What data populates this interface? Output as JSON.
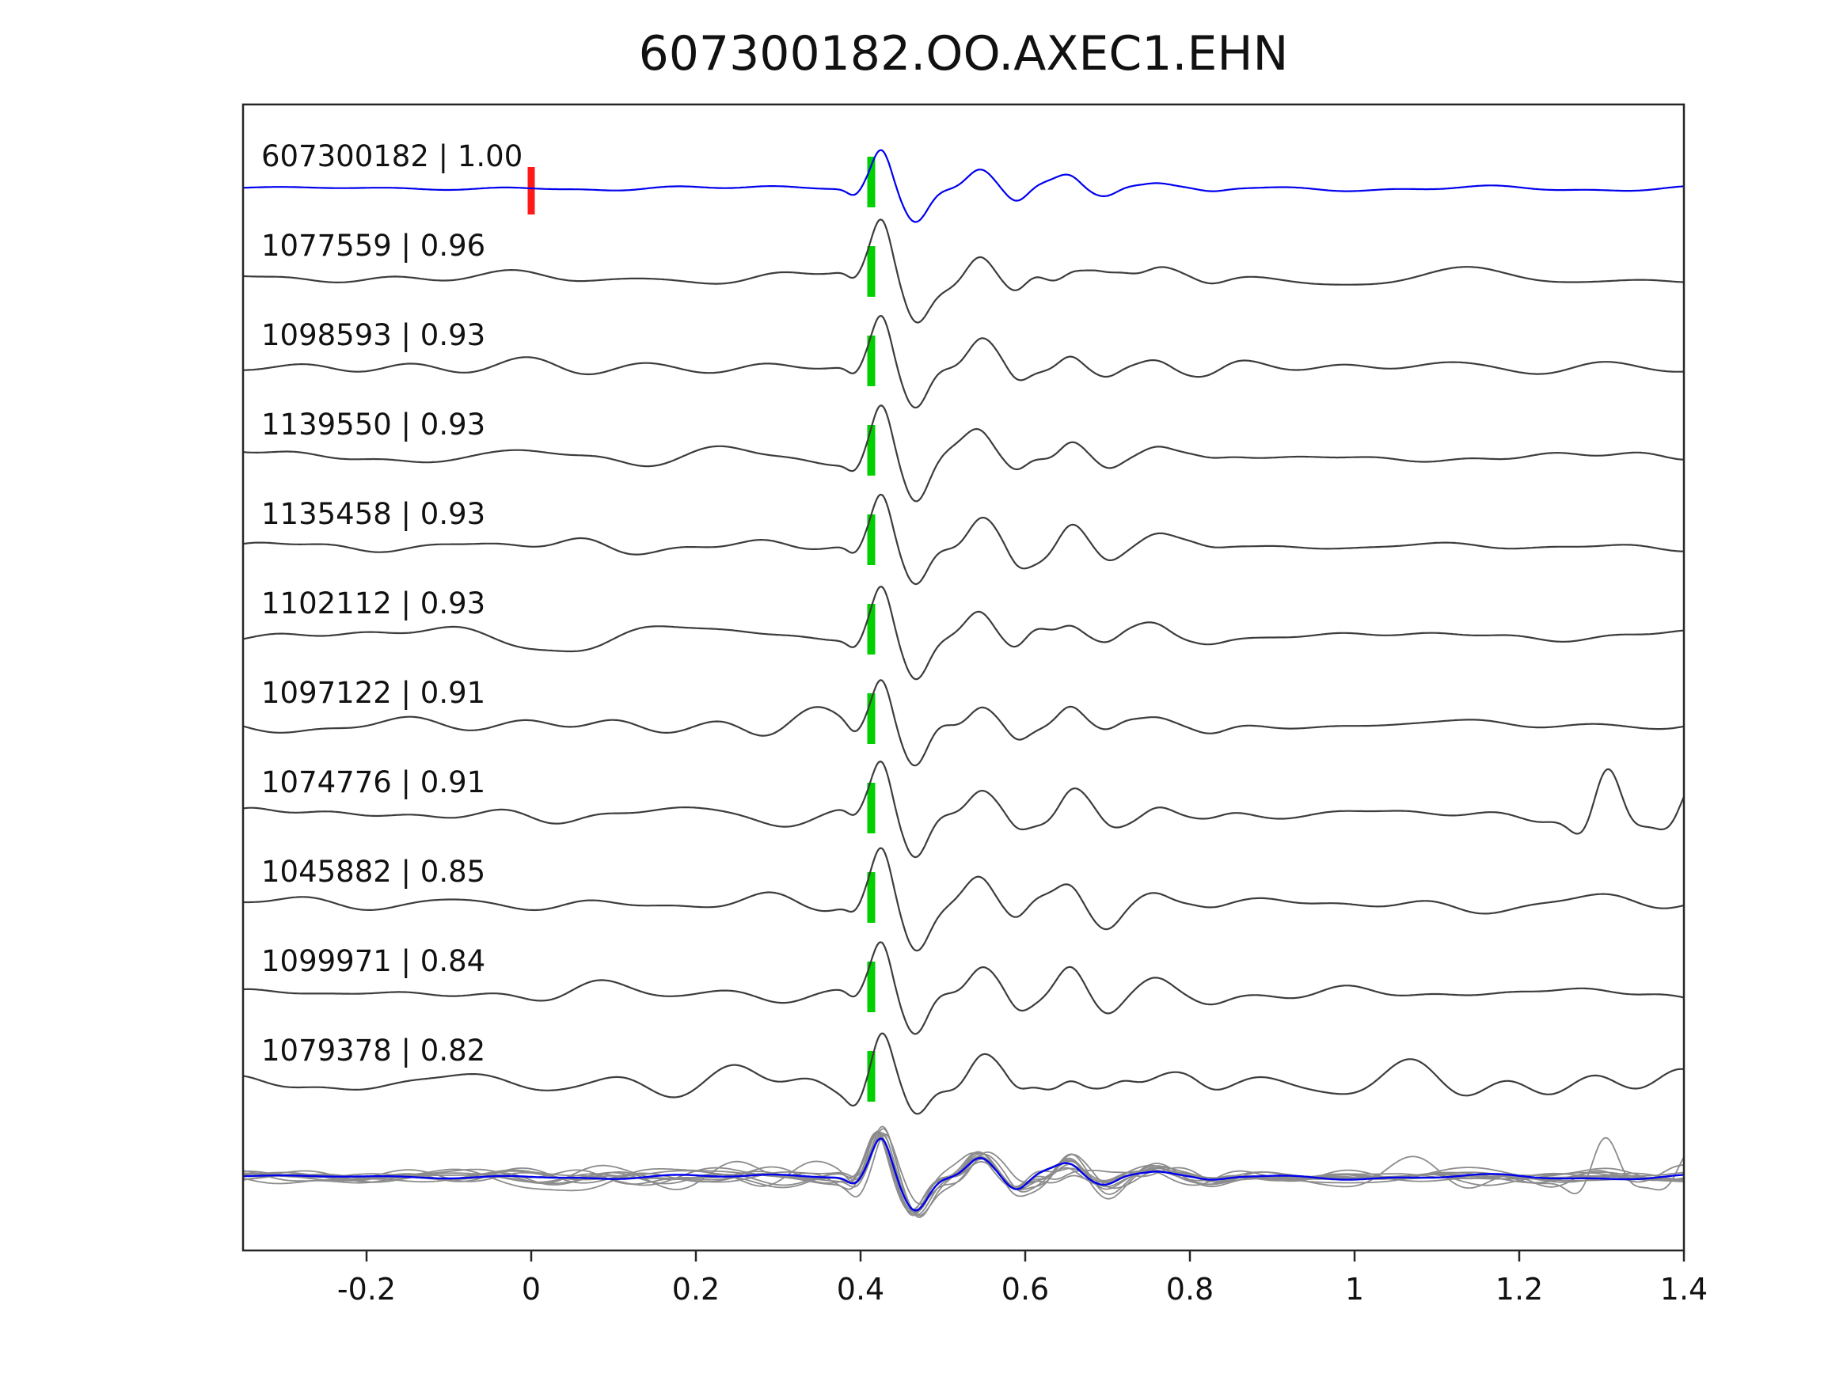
{
  "title": "607300182.OO.AXEC1.EHN",
  "chart_data": {
    "type": "line",
    "title": "607300182.OO.AXEC1.EHN",
    "xlabel": "",
    "ylabel": "",
    "xlim": [
      -0.35,
      1.4
    ],
    "x_tick_values": [
      -0.2,
      0,
      0.2,
      0.4,
      0.6,
      0.8,
      1,
      1.2,
      1.4
    ],
    "x_ticks": [
      "-0.2",
      "0",
      "0.2",
      "0.4",
      "0.6",
      "0.8",
      "1",
      "1.2",
      "1.4"
    ],
    "pick_time": 0.413,
    "template_pick_time": 0.0,
    "grid": false,
    "legend": false,
    "colors": {
      "template_trace": "#0000ee",
      "match_trace": "#3c3c3c",
      "stack_trace": "#8c8c8c",
      "pick_marker": "#00cf00",
      "template_pick_marker": "#ff1a1a",
      "axis": "#262626",
      "text": "#111111",
      "background": "#ffffff"
    },
    "traces": [
      {
        "id": "607300182",
        "cc": 1.0,
        "label": "607300182 | 1.00",
        "is_template": true
      },
      {
        "id": "1077559",
        "cc": 0.96,
        "label": "1077559 | 0.96"
      },
      {
        "id": "1098593",
        "cc": 0.93,
        "label": "1098593 | 0.93"
      },
      {
        "id": "1139550",
        "cc": 0.93,
        "label": "1139550 | 0.93"
      },
      {
        "id": "1135458",
        "cc": 0.93,
        "label": "1135458 | 0.93"
      },
      {
        "id": "1102112",
        "cc": 0.93,
        "label": "1102112 | 0.93"
      },
      {
        "id": "1097122",
        "cc": 0.91,
        "label": "1097122 | 0.91"
      },
      {
        "id": "1074776",
        "cc": 0.91,
        "label": "1074776 | 0.91",
        "late_burst": true
      },
      {
        "id": "1045882",
        "cc": 0.85,
        "label": "1045882 | 0.85"
      },
      {
        "id": "1099971",
        "cc": 0.84,
        "label": "1099971 | 0.84"
      },
      {
        "id": "1079378",
        "cc": 0.82,
        "label": "1079378 | 0.82",
        "noisy": true
      }
    ],
    "stack_overlay": {
      "description": "all matched waveforms overlaid in gray with the blue template on top",
      "includes_template": true
    }
  }
}
